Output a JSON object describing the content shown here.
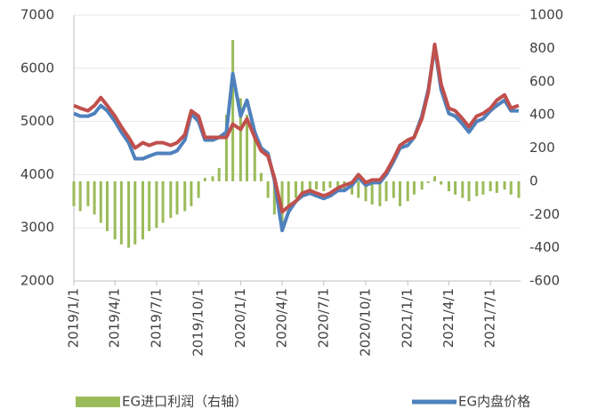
{
  "chart_data": {
    "type": "combo",
    "x": [
      "2019/1/1",
      "2019/1/15",
      "2019/2/1",
      "2019/2/15",
      "2019/3/1",
      "2019/3/15",
      "2019/4/1",
      "2019/4/15",
      "2019/5/1",
      "2019/5/15",
      "2019/6/1",
      "2019/6/15",
      "2019/7/1",
      "2019/7/15",
      "2019/8/1",
      "2019/8/15",
      "2019/9/1",
      "2019/9/15",
      "2019/10/1",
      "2019/10/15",
      "2019/11/1",
      "2019/11/15",
      "2019/12/1",
      "2019/12/15",
      "2020/1/1",
      "2020/1/15",
      "2020/2/1",
      "2020/2/15",
      "2020/3/1",
      "2020/3/15",
      "2020/4/1",
      "2020/4/15",
      "2020/5/1",
      "2020/5/15",
      "2020/6/1",
      "2020/6/15",
      "2020/7/1",
      "2020/7/15",
      "2020/8/1",
      "2020/8/15",
      "2020/9/1",
      "2020/9/15",
      "2020/10/1",
      "2020/10/15",
      "2020/11/1",
      "2020/11/15",
      "2020/12/1",
      "2020/12/15",
      "2021/1/1",
      "2021/1/15",
      "2021/2/1",
      "2021/2/15",
      "2021/3/1",
      "2021/3/15",
      "2021/4/1",
      "2021/4/15",
      "2021/5/1",
      "2021/5/15",
      "2021/6/1",
      "2021/6/15",
      "2021/7/1",
      "2021/7/15",
      "2021/8/1",
      "2021/8/15",
      "2021/9/1"
    ],
    "xlim": [
      "2019/1/1",
      "2021/9/5"
    ],
    "xticks": [
      "2019/1/1",
      "2019/4/1",
      "2019/7/1",
      "2019/10/1",
      "2020/1/1",
      "2020/4/1",
      "2020/7/1",
      "2020/10/1",
      "2021/1/1",
      "2021/4/1",
      "2021/7/1"
    ],
    "ylim": [
      2000,
      7000
    ],
    "yticks": [
      2000,
      3000,
      4000,
      5000,
      6000,
      7000
    ],
    "y2lim": [
      -600,
      1000
    ],
    "y2ticks": [
      -600,
      -400,
      -200,
      0,
      200,
      400,
      600,
      800,
      1000
    ],
    "grid": true,
    "legend": "bottom",
    "series": [
      {
        "name": "EG进口利润（右轴）",
        "type": "bar",
        "axis": "y2",
        "color": "#9bbb59",
        "values": [
          -150,
          -180,
          -150,
          -200,
          -250,
          -300,
          -350,
          -380,
          -400,
          -380,
          -350,
          -300,
          -280,
          -250,
          -220,
          -200,
          -180,
          -150,
          -100,
          20,
          30,
          80,
          400,
          850,
          500,
          400,
          300,
          50,
          -100,
          -200,
          -250,
          -200,
          -100,
          -80,
          -60,
          -50,
          -60,
          -40,
          -30,
          -60,
          -80,
          -100,
          -120,
          -140,
          -150,
          -120,
          -100,
          -150,
          -120,
          -80,
          -50,
          -10,
          30,
          -20,
          -60,
          -80,
          -100,
          -120,
          -90,
          -80,
          -60,
          -70,
          -50,
          -80,
          -100
        ]
      },
      {
        "name": "EG内盘价格",
        "type": "line",
        "color": "#4f81bd",
        "values": [
          5150,
          5100,
          5100,
          5150,
          5300,
          5200,
          5000,
          4800,
          4600,
          4300,
          4300,
          4350,
          4400,
          4400,
          4400,
          4450,
          4650,
          5150,
          5000,
          4650,
          4650,
          4700,
          4800,
          5900,
          5100,
          5400,
          4800,
          4500,
          4400,
          3900,
          2950,
          3300,
          3500,
          3600,
          3650,
          3600,
          3550,
          3600,
          3700,
          3700,
          3800,
          3950,
          3800,
          3850,
          3850,
          4000,
          4250,
          4500,
          4550,
          4700,
          5100,
          5600,
          6400,
          5600,
          5150,
          5100,
          4950,
          4800,
          5000,
          5050,
          5200,
          5300,
          5400,
          5200,
          5200
        ]
      },
      {
        "type": "line",
        "color": "#c0504d",
        "values": [
          5300,
          5250,
          5200,
          5300,
          5450,
          5300,
          5100,
          4900,
          4700,
          4500,
          4600,
          4550,
          4600,
          4600,
          4550,
          4600,
          4750,
          5200,
          5100,
          4700,
          4700,
          4700,
          4700,
          4950,
          4850,
          5050,
          4700,
          4450,
          4350,
          3950,
          3300,
          3400,
          3500,
          3650,
          3700,
          3650,
          3600,
          3650,
          3750,
          3800,
          3850,
          4000,
          3850,
          3900,
          3900,
          4050,
          4300,
          4550,
          4650,
          4700,
          5050,
          5550,
          6450,
          5700,
          5250,
          5200,
          5050,
          4900,
          5100,
          5150,
          5250,
          5400,
          5500,
          5250,
          5300
        ]
      }
    ]
  }
}
